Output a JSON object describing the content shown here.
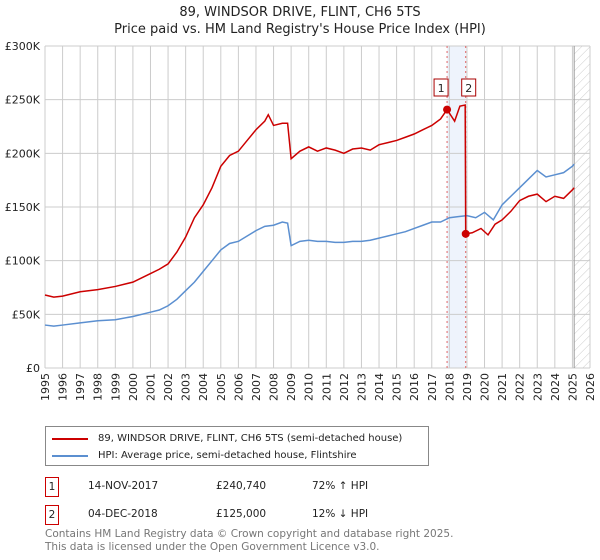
{
  "title": "89, WINDSOR DRIVE, FLINT, CH6 5TS",
  "subtitle": "Price paid vs. HM Land Registry's House Price Index (HPI)",
  "chart_data": {
    "type": "line",
    "title": "89, WINDSOR DRIVE, FLINT, CH6 5TS",
    "subtitle": "Price paid vs. HM Land Registry's House Price Index (HPI)",
    "xlim": [
      1995,
      2026
    ],
    "ylim": [
      0,
      300000
    ],
    "x_ticks": [
      "1995",
      "1996",
      "1997",
      "1998",
      "1999",
      "2000",
      "2001",
      "2002",
      "2003",
      "2004",
      "2005",
      "2006",
      "2007",
      "2008",
      "2009",
      "2010",
      "2011",
      "2012",
      "2013",
      "2014",
      "2015",
      "2016",
      "2017",
      "2018",
      "2019",
      "2020",
      "2021",
      "2022",
      "2023",
      "2024",
      "2025",
      "2026"
    ],
    "y_ticks": [
      {
        "v": 0,
        "l": "£0"
      },
      {
        "v": 50000,
        "l": "£50K"
      },
      {
        "v": 100000,
        "l": "£100K"
      },
      {
        "v": 150000,
        "l": "£150K"
      },
      {
        "v": 200000,
        "l": "£200K"
      },
      {
        "v": 250000,
        "l": "£250K"
      },
      {
        "v": 300000,
        "l": "£300K"
      }
    ],
    "grid": true,
    "series": [
      {
        "name": "89, WINDSOR DRIVE, FLINT, CH6 5TS (semi-detached house)",
        "color": "#cc0000",
        "x": [
          1995,
          1995.5,
          1996,
          1997,
          1998,
          1999,
          2000,
          2001,
          2001.5,
          2002,
          2002.5,
          2003,
          2003.5,
          2004,
          2004.5,
          2005,
          2005.5,
          2006,
          2006.5,
          2007,
          2007.5,
          2007.7,
          2008,
          2008.5,
          2008.8,
          2009,
          2009.5,
          2010,
          2010.5,
          2011,
          2011.5,
          2012,
          2012.5,
          2013,
          2013.5,
          2014,
          2014.5,
          2015,
          2015.5,
          2016,
          2016.5,
          2017,
          2017.5,
          2017.87,
          2018.3,
          2018.6,
          2018.9,
          2018.93,
          2019.3,
          2019.8,
          2020.2,
          2020.6,
          2021,
          2021.5,
          2022,
          2022.5,
          2023,
          2023.5,
          2024,
          2024.5,
          2025,
          2025.1
        ],
        "y": [
          68000,
          66000,
          67000,
          71000,
          73000,
          76000,
          80000,
          88000,
          92000,
          97000,
          108000,
          122000,
          140000,
          152000,
          168000,
          188000,
          198000,
          202000,
          212000,
          222000,
          230000,
          236000,
          226000,
          228000,
          228000,
          195000,
          202000,
          206000,
          202000,
          205000,
          203000,
          200000,
          204000,
          205000,
          203000,
          208000,
          210000,
          212000,
          215000,
          218000,
          222000,
          226000,
          232000,
          240740,
          230000,
          244000,
          245000,
          125000,
          126000,
          130000,
          124000,
          134000,
          138000,
          146000,
          156000,
          160000,
          162000,
          155000,
          160000,
          158000,
          166000,
          168000
        ]
      },
      {
        "name": "HPI: Average price, semi-detached house, Flintshire",
        "color": "#5b8fd0",
        "x": [
          1995,
          1995.5,
          1996,
          1997,
          1998,
          1999,
          2000,
          2001,
          2001.5,
          2002,
          2002.5,
          2003,
          2003.5,
          2004,
          2004.5,
          2005,
          2005.5,
          2006,
          2006.5,
          2007,
          2007.5,
          2008,
          2008.5,
          2008.8,
          2009,
          2009.5,
          2010,
          2010.5,
          2011,
          2011.5,
          2012,
          2012.5,
          2013,
          2013.5,
          2014,
          2014.5,
          2015,
          2015.5,
          2016,
          2016.5,
          2017,
          2017.5,
          2018,
          2018.5,
          2019,
          2019.5,
          2020,
          2020.5,
          2021,
          2021.5,
          2022,
          2022.5,
          2023,
          2023.5,
          2024,
          2024.5,
          2025,
          2025.1
        ],
        "y": [
          40000,
          39000,
          40000,
          42000,
          44000,
          45000,
          48000,
          52000,
          54000,
          58000,
          64000,
          72000,
          80000,
          90000,
          100000,
          110000,
          116000,
          118000,
          123000,
          128000,
          132000,
          133000,
          136000,
          135000,
          114000,
          118000,
          119000,
          118000,
          118000,
          117000,
          117000,
          118000,
          118000,
          119000,
          121000,
          123000,
          125000,
          127000,
          130000,
          133000,
          136000,
          136000,
          140000,
          141000,
          142000,
          140000,
          145000,
          138000,
          152000,
          160000,
          168000,
          176000,
          184000,
          178000,
          180000,
          182000,
          188000,
          190000
        ]
      }
    ],
    "annotations": [
      {
        "label": "1",
        "x": 2017.87,
        "y": 240740
      },
      {
        "label": "2",
        "x": 2018.93,
        "y": 125000
      }
    ],
    "shaded_range": [
      2017.87,
      2018.93
    ],
    "hatched_from": 2025.1
  },
  "legend": {
    "items": [
      {
        "label": "89, WINDSOR DRIVE, FLINT, CH6 5TS (semi-detached house)",
        "color": "#cc0000"
      },
      {
        "label": "HPI: Average price, semi-detached house, Flintshire",
        "color": "#5b8fd0"
      }
    ]
  },
  "transactions": [
    {
      "num": "1",
      "date": "14-NOV-2017",
      "price": "£240,740",
      "hpi": "72% ↑ HPI"
    },
    {
      "num": "2",
      "date": "04-DEC-2018",
      "price": "£125,000",
      "hpi": "12% ↓ HPI"
    }
  ],
  "footer": {
    "line1": "Contains HM Land Registry data © Crown copyright and database right 2025.",
    "line2": "This data is licensed under the Open Government Licence v3.0."
  }
}
